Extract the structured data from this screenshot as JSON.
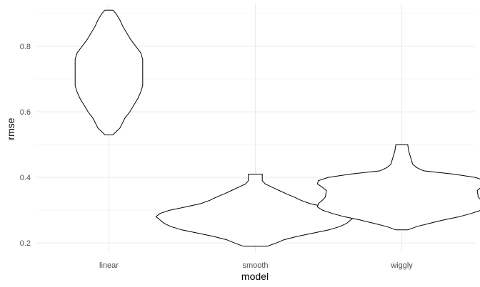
{
  "chart_data": {
    "type": "violin",
    "xlabel": "model",
    "ylabel": "rmse",
    "categories": [
      "linear",
      "smooth",
      "wiggly"
    ],
    "ylim": [
      0.17,
      0.93
    ],
    "yticks": [
      0.2,
      0.4,
      0.6,
      0.8
    ],
    "ytick_labels": [
      "0.2",
      "0.4",
      "0.6",
      "0.8"
    ],
    "grid": true,
    "violins": [
      {
        "category": "linear",
        "min": 0.53,
        "max": 0.91,
        "profile": [
          [
            0.53,
            0.04
          ],
          [
            0.55,
            0.11
          ],
          [
            0.58,
            0.16
          ],
          [
            0.6,
            0.21
          ],
          [
            0.62,
            0.25
          ],
          [
            0.64,
            0.29
          ],
          [
            0.66,
            0.32
          ],
          [
            0.68,
            0.34
          ],
          [
            0.72,
            0.34
          ],
          [
            0.76,
            0.34
          ],
          [
            0.78,
            0.32
          ],
          [
            0.8,
            0.27
          ],
          [
            0.82,
            0.22
          ],
          [
            0.84,
            0.18
          ],
          [
            0.86,
            0.14
          ],
          [
            0.88,
            0.11
          ],
          [
            0.9,
            0.07
          ],
          [
            0.91,
            0.04
          ]
        ]
      },
      {
        "category": "smooth",
        "min": 0.19,
        "max": 0.41,
        "profile": [
          [
            0.19,
            0.12
          ],
          [
            0.2,
            0.21
          ],
          [
            0.21,
            0.29
          ],
          [
            0.22,
            0.42
          ],
          [
            0.23,
            0.58
          ],
          [
            0.24,
            0.74
          ],
          [
            0.25,
            0.85
          ],
          [
            0.26,
            0.92
          ],
          [
            0.27,
            0.96
          ],
          [
            0.28,
            1.0
          ],
          [
            0.29,
            0.96
          ],
          [
            0.3,
            0.86
          ],
          [
            0.31,
            0.7
          ],
          [
            0.32,
            0.55
          ],
          [
            0.33,
            0.46
          ],
          [
            0.34,
            0.39
          ],
          [
            0.35,
            0.31
          ],
          [
            0.36,
            0.24
          ],
          [
            0.37,
            0.17
          ],
          [
            0.38,
            0.1
          ],
          [
            0.39,
            0.07
          ],
          [
            0.41,
            0.07
          ]
        ]
      },
      {
        "category": "wiggly",
        "min": 0.24,
        "max": 0.5,
        "profile": [
          [
            0.24,
            0.06
          ],
          [
            0.25,
            0.15
          ],
          [
            0.26,
            0.28
          ],
          [
            0.27,
            0.42
          ],
          [
            0.28,
            0.58
          ],
          [
            0.29,
            0.7
          ],
          [
            0.3,
            0.8
          ],
          [
            0.31,
            0.85
          ],
          [
            0.32,
            0.84
          ],
          [
            0.33,
            0.8
          ],
          [
            0.34,
            0.77
          ],
          [
            0.36,
            0.76
          ],
          [
            0.37,
            0.8
          ],
          [
            0.38,
            0.85
          ],
          [
            0.39,
            0.84
          ],
          [
            0.4,
            0.74
          ],
          [
            0.41,
            0.52
          ],
          [
            0.42,
            0.22
          ],
          [
            0.43,
            0.15
          ],
          [
            0.44,
            0.11
          ],
          [
            0.46,
            0.09
          ],
          [
            0.48,
            0.07
          ],
          [
            0.5,
            0.06
          ]
        ]
      }
    ]
  }
}
